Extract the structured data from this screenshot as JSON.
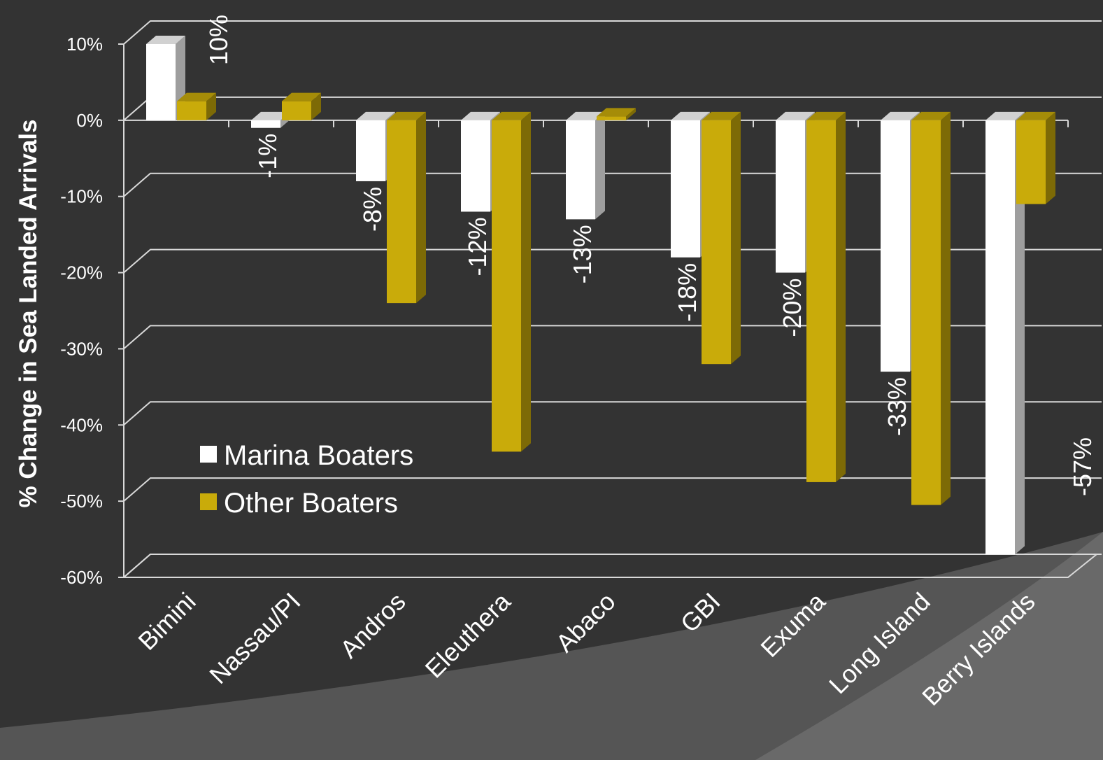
{
  "chart_data": {
    "type": "bar",
    "title": "",
    "xlabel": "",
    "ylabel": "% Change in Sea Landed Arrivals",
    "ylim": [
      -60,
      10
    ],
    "yticks": [
      10,
      0,
      -10,
      -20,
      -30,
      -40,
      -50,
      -60
    ],
    "ytick_labels": [
      "10%",
      "0%",
      "-10%",
      "-20%",
      "-30%",
      "-40%",
      "-50%",
      "-60%"
    ],
    "categories": [
      "Bimini",
      "Nassau/PI",
      "Andros",
      "Eleuthera",
      "Abaco",
      "GBI",
      "Exuma",
      "Long Island",
      "Berry Islands"
    ],
    "series": [
      {
        "name": "Marina Boaters",
        "color": "#FFFFFF",
        "values": [
          10,
          -1,
          -8,
          -12,
          -13,
          -18,
          -20,
          -33,
          -57
        ],
        "data_labels": [
          "10%",
          "-1%",
          "-8%",
          "-12%",
          "-13%",
          "-18%",
          "-20%",
          "-33%",
          "-57%"
        ]
      },
      {
        "name": "Other Boaters",
        "color": "#C9AB0A",
        "values": [
          2.5,
          2.5,
          -24,
          -43.5,
          0.5,
          -32,
          -47.5,
          -50.5,
          -11
        ]
      }
    ],
    "legend": {
      "position": "bottom-left",
      "entries": [
        "Marina Boaters",
        "Other Boaters"
      ]
    },
    "grid": true,
    "style": "3d-column"
  },
  "colors": {
    "background": "#333333",
    "text": "#FFFFFF",
    "gridline": "#D9D9D9",
    "marina_boaters": "#FFFFFF",
    "other_boaters": "#C9AB0A"
  }
}
